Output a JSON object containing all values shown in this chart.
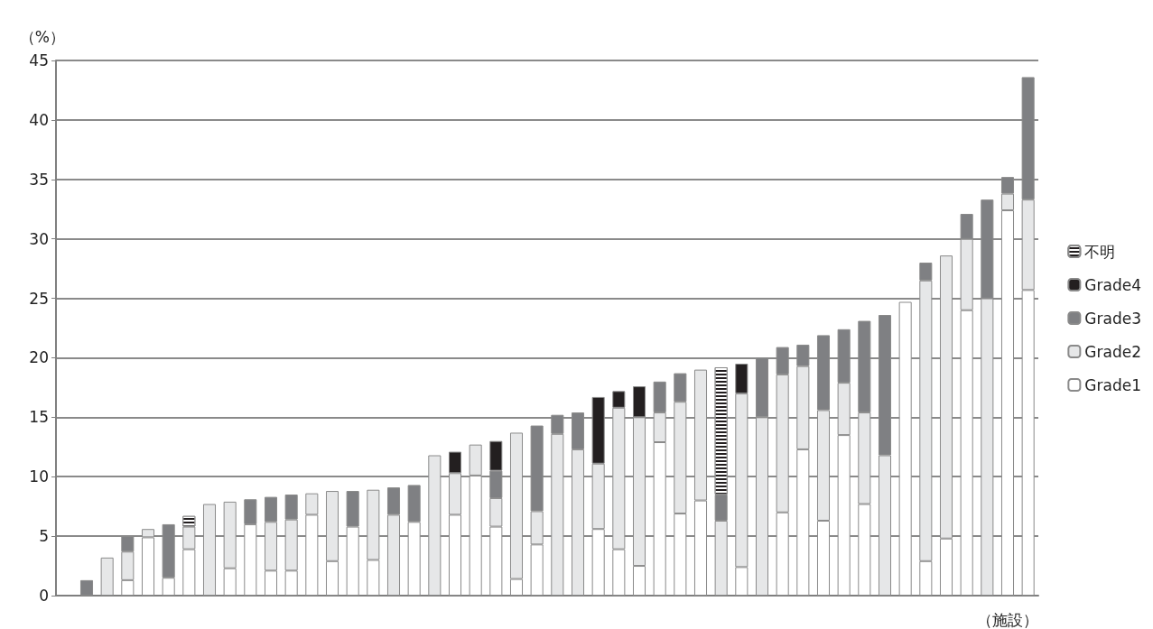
{
  "chart_data": {
    "type": "bar",
    "stacked": true,
    "xlabel": "（施設）",
    "ylabel": "（%）",
    "categories": [
      null,
      null,
      null,
      null,
      null,
      null,
      null,
      null,
      null,
      null,
      null,
      null,
      null,
      null,
      null,
      null,
      null,
      null,
      null,
      null,
      null,
      null,
      null,
      null,
      null,
      null,
      null,
      null,
      null,
      null,
      null,
      null,
      null,
      null,
      null,
      null,
      null,
      null,
      null,
      null,
      null,
      null,
      null,
      null,
      null,
      null,
      null,
      null
    ],
    "series": [
      {
        "name": "Grade1",
        "color": "#ffffff",
        "values": [
          null,
          null,
          null,
          1.3,
          4.9,
          1.5,
          3.9,
          null,
          2.3,
          6.0,
          2.1,
          2.1,
          6.8,
          2.9,
          5.8,
          3.0,
          null,
          6.2,
          null,
          6.8,
          10.1,
          5.8,
          1.4,
          4.3,
          null,
          null,
          5.6,
          3.9,
          2.5,
          12.9,
          6.9,
          8.0,
          null,
          2.4,
          null,
          7.0,
          12.3,
          6.3,
          13.5,
          7.7,
          null,
          24.7,
          2.9,
          4.8,
          24.0,
          null,
          32.4,
          25.7
        ]
      },
      {
        "name": "Grade2",
        "color": "#e6e7e8",
        "values": [
          null,
          null,
          3.2,
          2.4,
          0.7,
          null,
          1.9,
          7.7,
          5.6,
          null,
          4.1,
          4.3,
          1.8,
          5.9,
          null,
          5.9,
          6.8,
          null,
          11.8,
          3.5,
          2.6,
          2.4,
          12.3,
          2.8,
          13.6,
          12.3,
          5.5,
          11.9,
          12.5,
          2.5,
          9.4,
          11.0,
          6.3,
          14.6,
          15.0,
          11.6,
          7.0,
          9.3,
          4.4,
          7.7,
          11.8,
          null,
          23.6,
          23.8,
          6.0,
          25.0,
          1.4,
          7.6
        ]
      },
      {
        "name": "Grade3",
        "color": "#7f8083",
        "values": [
          null,
          1.3,
          null,
          1.3,
          null,
          4.5,
          null,
          null,
          null,
          2.1,
          2.1,
          2.1,
          null,
          null,
          3.0,
          null,
          2.3,
          3.1,
          null,
          null,
          null,
          2.3,
          null,
          7.2,
          1.6,
          3.1,
          null,
          null,
          null,
          2.6,
          2.4,
          null,
          2.2,
          null,
          5.0,
          2.3,
          1.8,
          6.3,
          4.5,
          7.7,
          11.8,
          null,
          1.5,
          null,
          2.1,
          8.3,
          1.4,
          10.3
        ]
      },
      {
        "name": "Grade4",
        "color": "#231f20",
        "values": [
          null,
          null,
          null,
          null,
          null,
          null,
          null,
          null,
          null,
          null,
          null,
          null,
          null,
          null,
          null,
          null,
          null,
          null,
          null,
          1.8,
          null,
          2.5,
          null,
          null,
          null,
          null,
          5.6,
          1.4,
          2.6,
          null,
          null,
          null,
          null,
          2.5,
          null,
          null,
          null,
          null,
          null,
          null,
          null,
          null,
          null,
          null,
          null,
          null,
          null,
          null
        ]
      },
      {
        "name": "不明",
        "color": "#231f20",
        "values": [
          null,
          null,
          null,
          null,
          null,
          null,
          0.9,
          null,
          null,
          null,
          null,
          null,
          null,
          null,
          null,
          null,
          null,
          null,
          null,
          null,
          null,
          null,
          null,
          null,
          null,
          null,
          null,
          null,
          null,
          null,
          null,
          null,
          10.7,
          null,
          null,
          null,
          null,
          null,
          null,
          null,
          null,
          null,
          null,
          null,
          null,
          null,
          null,
          null
        ]
      }
    ],
    "ylim": [
      0,
      45
    ],
    "yticks": [
      0,
      5,
      10,
      15,
      20,
      25,
      30,
      35,
      40,
      45
    ],
    "grid": "y",
    "legend": "right"
  }
}
